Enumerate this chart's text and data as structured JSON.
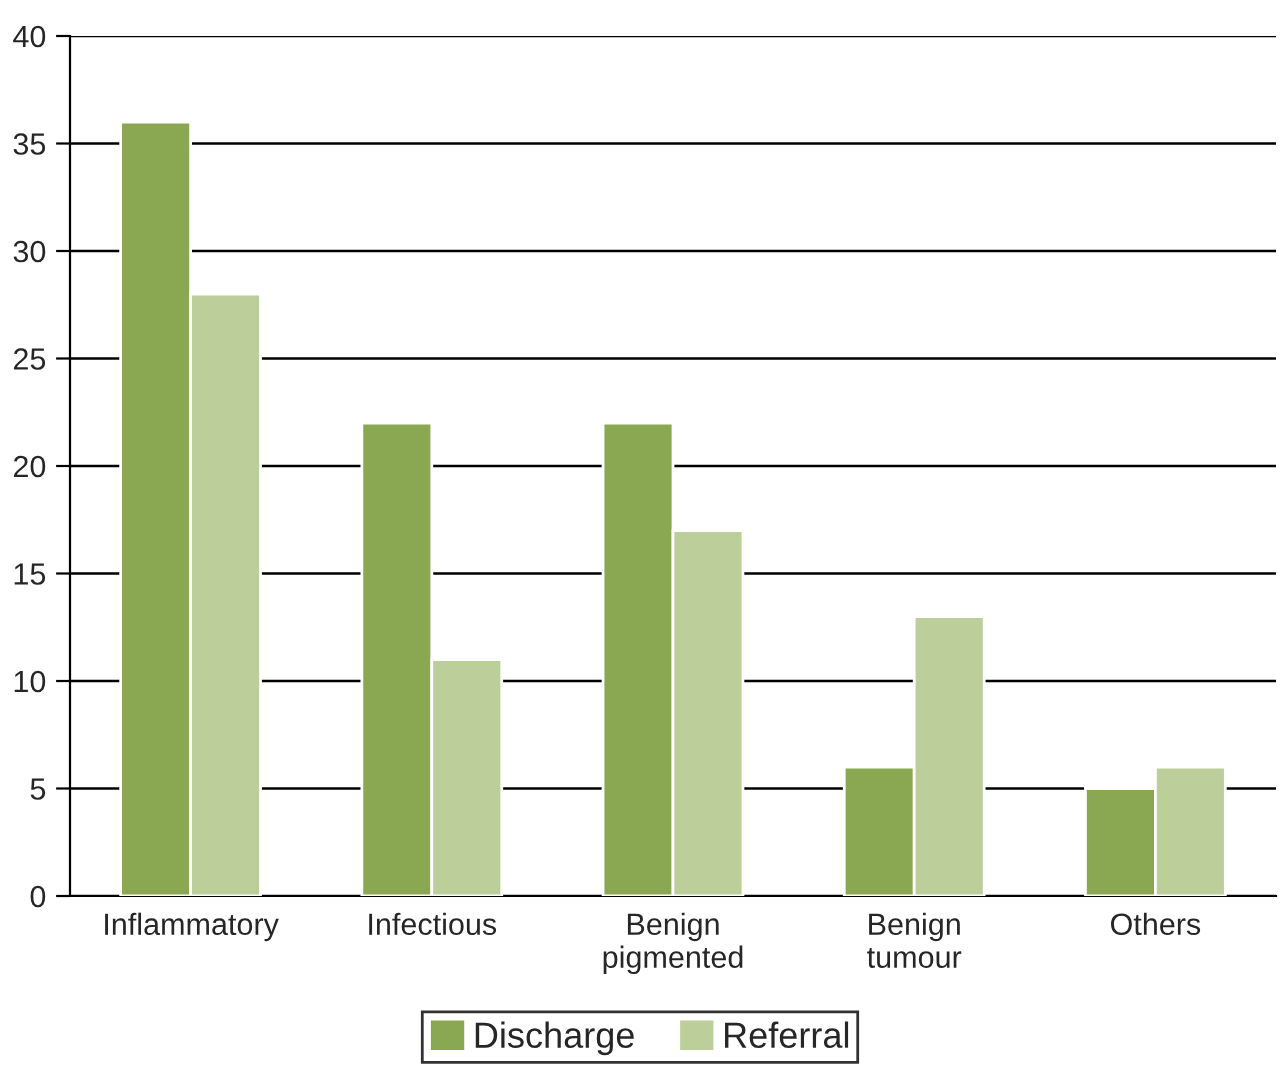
{
  "chart_data": {
    "type": "bar",
    "categories": [
      "Inflammatory",
      "Infectious",
      "Benign\npigmented",
      "Benign\ntumour",
      "Others"
    ],
    "series": [
      {
        "name": "Discharge",
        "color": "#8aa752",
        "values": [
          36,
          22,
          22,
          6,
          5
        ]
      },
      {
        "name": "Referral",
        "color": "#bccf9a",
        "values": [
          28,
          11,
          17,
          13,
          6
        ]
      }
    ],
    "ylim": [
      0,
      40
    ],
    "yticks": [
      0,
      5,
      10,
      15,
      20,
      25,
      30,
      35,
      40
    ],
    "grid": "y",
    "legend": "bottom"
  }
}
